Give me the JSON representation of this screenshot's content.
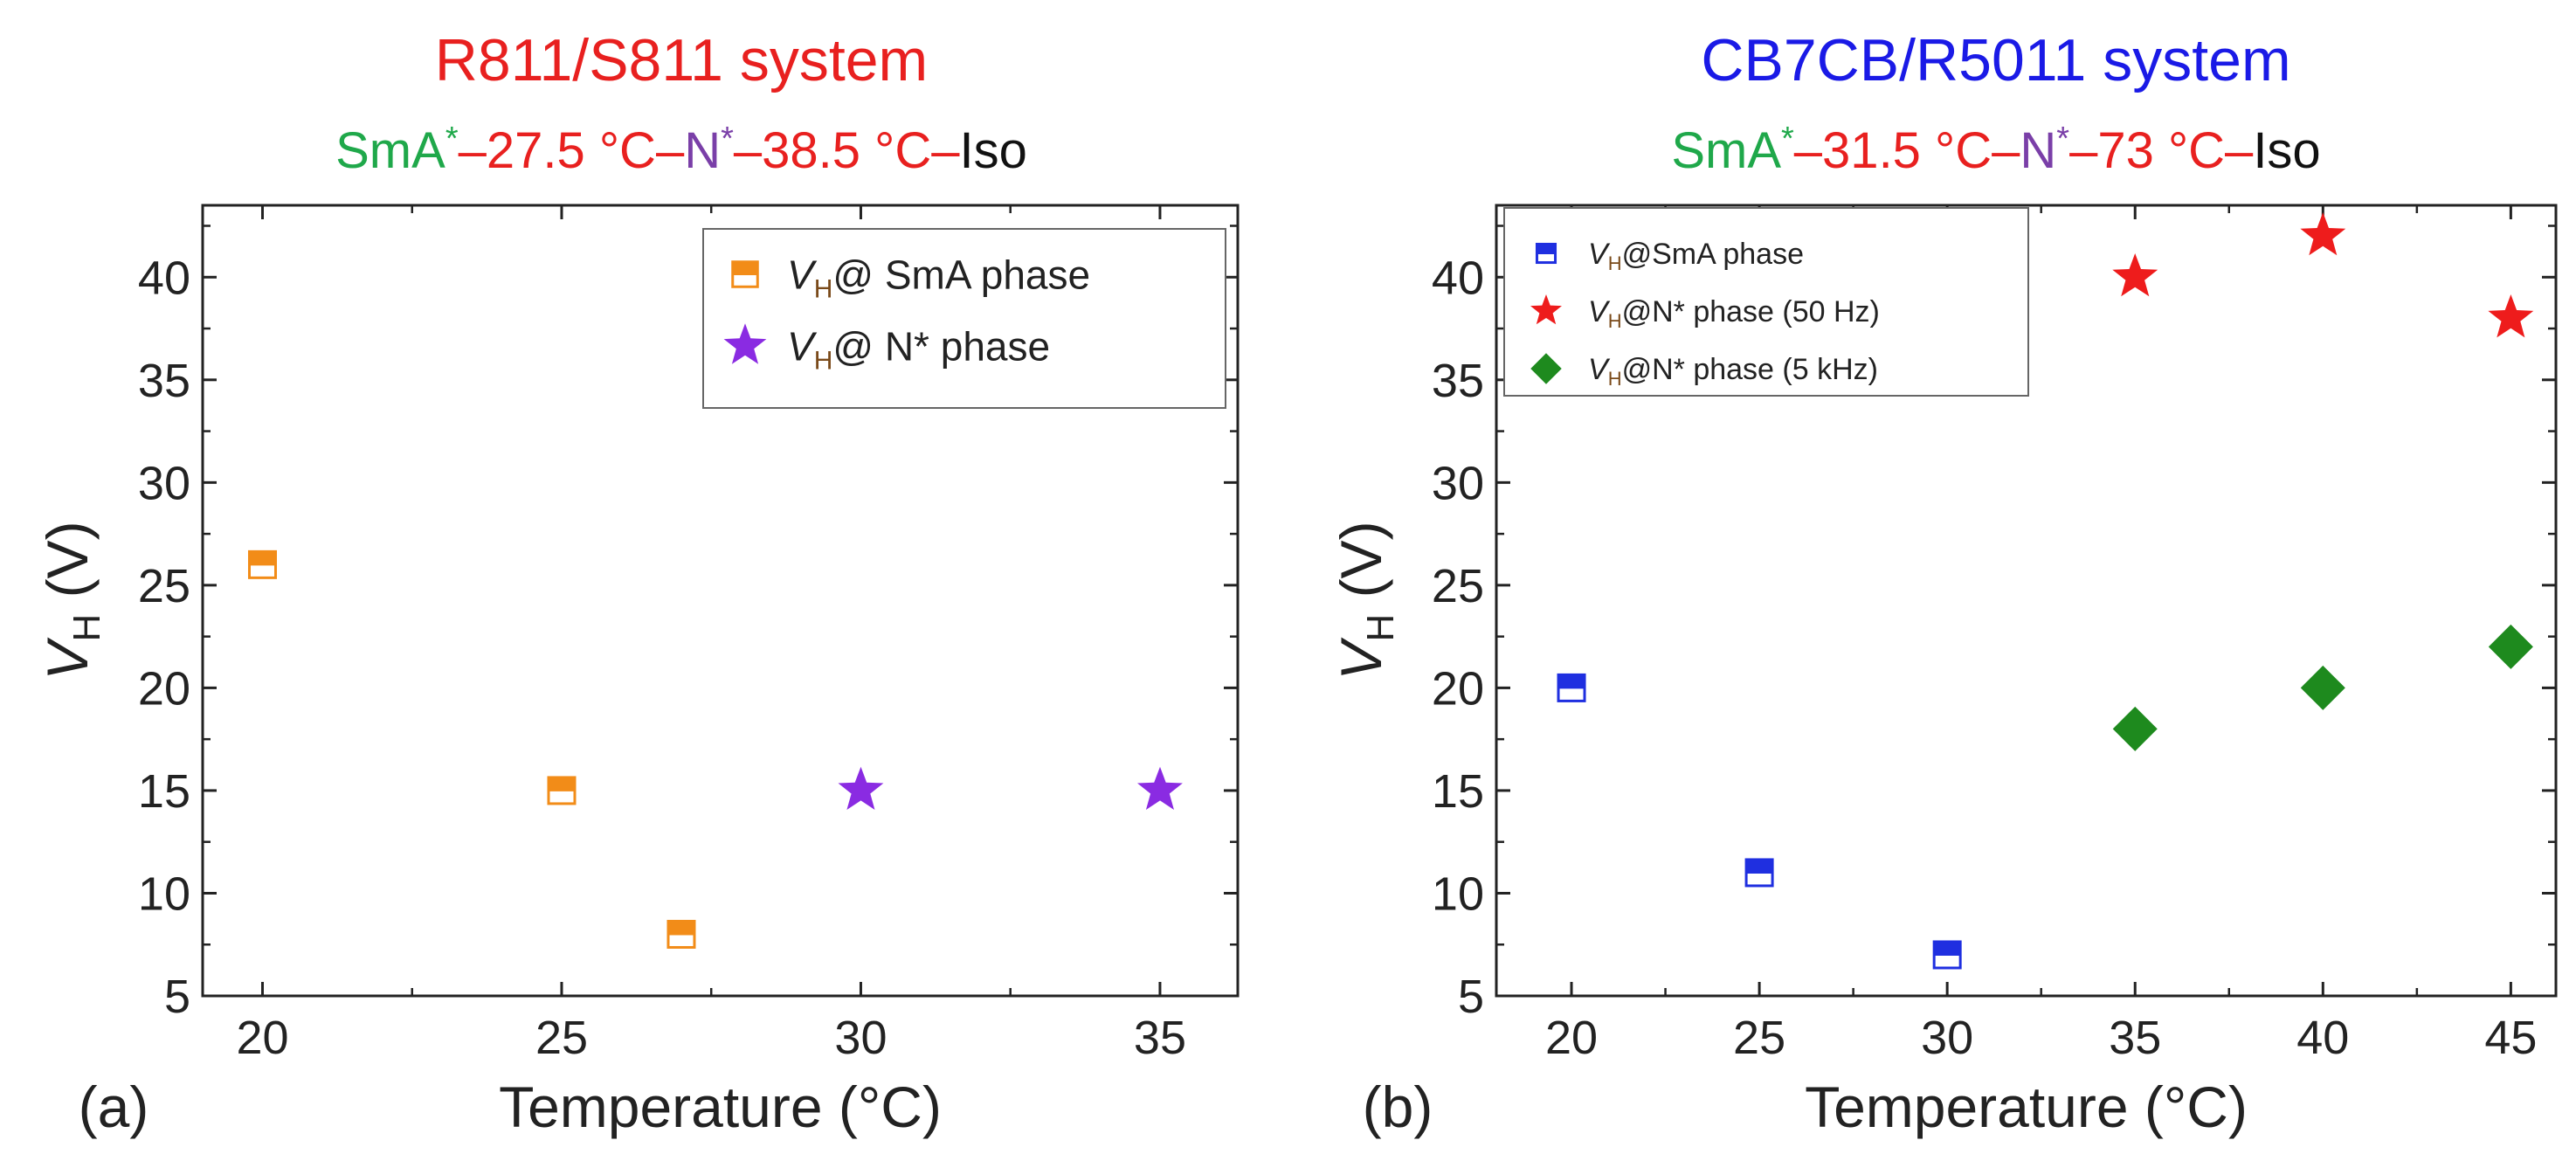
{
  "colors": {
    "red": "#e8201f",
    "blue": "#1a1ae6",
    "green": "#1fa84a",
    "purple": "#7a3fa8",
    "black": "#111111",
    "orange": "#f28c18",
    "violet": "#8a2be2",
    "star_red": "#ee1c1c",
    "diamond_green": "#1e8a1e",
    "square_blue": "#1f2fe0",
    "subscript_brown": "#7a4a1a"
  },
  "chart_data": [
    {
      "panel": "(a)",
      "type": "scatter",
      "title": "R811/S811 system",
      "subtitle": {
        "phase1": "SmA",
        "phase1_sup": "*",
        "sep1": "–27.5 °C–",
        "phase2": "N",
        "phase2_sup": "*",
        "sep2": "–38.5 °C–",
        "phase3": "Iso"
      },
      "xlabel": "Temperature (°C)",
      "ylabel_main": "V",
      "ylabel_sub": "H",
      "ylabel_rest": " (V)",
      "xlim": [
        19,
        36.3
      ],
      "ylim": [
        5,
        43.5
      ],
      "xticks": [
        20,
        25,
        30,
        35
      ],
      "yticks": [
        5,
        10,
        15,
        20,
        25,
        30,
        35,
        40
      ],
      "legend_position": "top-right",
      "series": [
        {
          "name": "@ SmA phase",
          "label_main": "V",
          "label_sub": "H",
          "label_rest": "@ SmA phase",
          "marker": "half-square",
          "color": "#f28c18",
          "x": [
            20,
            25,
            27
          ],
          "y": [
            26,
            15,
            8
          ]
        },
        {
          "name": "@ N* phase",
          "label_main": "V",
          "label_sub": "H",
          "label_rest": "@ N* phase",
          "marker": "star",
          "color": "#8a2be2",
          "x": [
            30,
            35
          ],
          "y": [
            15,
            15
          ]
        }
      ]
    },
    {
      "panel": "(b)",
      "type": "scatter",
      "title": "CB7CB/R5011 system",
      "subtitle": {
        "phase1": "SmA",
        "phase1_sup": "*",
        "sep1": "–31.5 °C–",
        "phase2": "N",
        "phase2_sup": "*",
        "sep2": "–73 °C–",
        "phase3": "Iso"
      },
      "xlabel": "Temperature (°C)",
      "ylabel_main": "V",
      "ylabel_sub": "H",
      "ylabel_rest": " (V)",
      "xlim": [
        18,
        46.2
      ],
      "ylim": [
        5,
        43.5
      ],
      "xticks": [
        20,
        25,
        30,
        35,
        40,
        45
      ],
      "yticks": [
        5,
        10,
        15,
        20,
        25,
        30,
        35,
        40
      ],
      "legend_position": "top-left",
      "series": [
        {
          "name": "@SmA phase",
          "label_main": "V",
          "label_sub": "H",
          "label_rest": "@SmA phase",
          "marker": "half-square",
          "color": "#1f2fe0",
          "x": [
            20,
            25,
            30
          ],
          "y": [
            20,
            11,
            7
          ]
        },
        {
          "name": "@N* phase (50 Hz)",
          "label_main": "V",
          "label_sub": "H",
          "label_rest": "@N* phase (50 Hz)",
          "marker": "star",
          "color": "#ee1c1c",
          "x": [
            35,
            40,
            45
          ],
          "y": [
            40,
            42,
            38
          ]
        },
        {
          "name": "@N* phase (5 kHz)",
          "label_main": "V",
          "label_sub": "H",
          "label_rest": "@N* phase (5 kHz)",
          "marker": "diamond",
          "color": "#1e8a1e",
          "x": [
            35,
            40,
            45
          ],
          "y": [
            18,
            20,
            22
          ]
        }
      ]
    }
  ]
}
